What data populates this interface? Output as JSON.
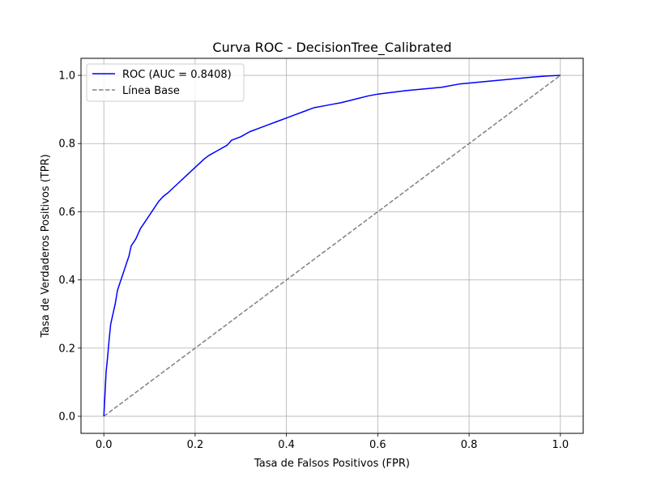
{
  "chart_data": {
    "type": "line",
    "title": "Curva ROC - DecisionTree_Calibrated",
    "xlabel": "Tasa de Falsos Positivos (FPR)",
    "ylabel": "Tasa de Verdaderos Positivos (TPR)",
    "xlim": [
      -0.05,
      1.05
    ],
    "ylim": [
      -0.05,
      1.05
    ],
    "xticks": [
      "0.0",
      "0.2",
      "0.4",
      "0.6",
      "0.8",
      "1.0"
    ],
    "yticks": [
      "0.0",
      "0.2",
      "0.4",
      "0.6",
      "0.8",
      "1.0"
    ],
    "grid": true,
    "legend_position": "top-left",
    "series": [
      {
        "name": "ROC (AUC = 0.8408)",
        "color": "#0000ff",
        "style": "solid",
        "x": [
          0.0,
          0.002,
          0.005,
          0.008,
          0.01,
          0.012,
          0.015,
          0.02,
          0.025,
          0.03,
          0.035,
          0.04,
          0.045,
          0.05,
          0.055,
          0.06,
          0.065,
          0.07,
          0.08,
          0.09,
          0.1,
          0.11,
          0.115,
          0.12,
          0.13,
          0.14,
          0.16,
          0.18,
          0.2,
          0.22,
          0.23,
          0.25,
          0.27,
          0.28,
          0.3,
          0.32,
          0.34,
          0.36,
          0.38,
          0.4,
          0.42,
          0.44,
          0.46,
          0.48,
          0.5,
          0.52,
          0.55,
          0.58,
          0.6,
          0.63,
          0.66,
          0.7,
          0.74,
          0.78,
          0.82,
          0.86,
          0.9,
          0.94,
          0.97,
          1.0
        ],
        "y": [
          0.0,
          0.05,
          0.13,
          0.17,
          0.2,
          0.23,
          0.27,
          0.3,
          0.33,
          0.37,
          0.39,
          0.41,
          0.43,
          0.45,
          0.47,
          0.5,
          0.51,
          0.52,
          0.55,
          0.57,
          0.59,
          0.61,
          0.62,
          0.63,
          0.645,
          0.655,
          0.68,
          0.705,
          0.73,
          0.755,
          0.765,
          0.78,
          0.795,
          0.81,
          0.82,
          0.835,
          0.845,
          0.855,
          0.865,
          0.875,
          0.885,
          0.895,
          0.905,
          0.91,
          0.915,
          0.92,
          0.93,
          0.94,
          0.945,
          0.95,
          0.955,
          0.96,
          0.965,
          0.975,
          0.98,
          0.985,
          0.99,
          0.995,
          0.998,
          1.0
        ]
      },
      {
        "name": "Línea Base",
        "color": "#808080",
        "style": "dashed",
        "x": [
          0.0,
          1.0
        ],
        "y": [
          0.0,
          1.0
        ]
      }
    ]
  }
}
